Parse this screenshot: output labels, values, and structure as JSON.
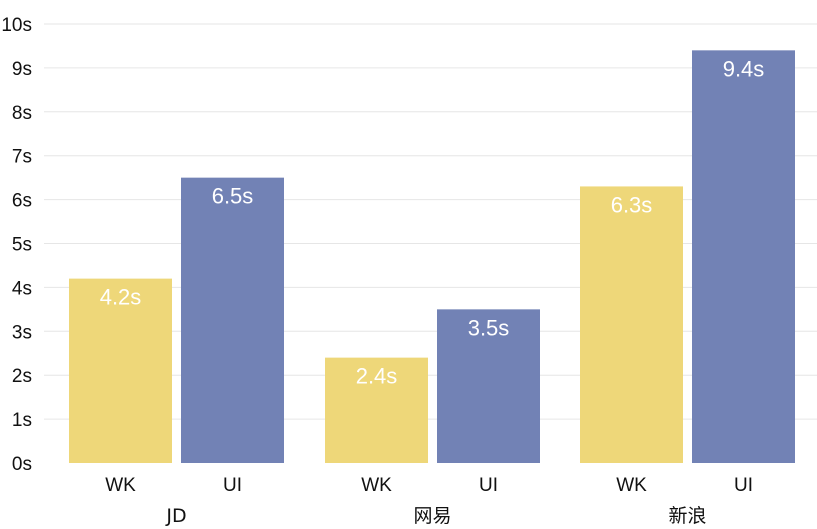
{
  "chart_data": {
    "type": "bar",
    "categories": [
      "JD",
      "网易",
      "新浪"
    ],
    "series": [
      {
        "name": "WK",
        "values": [
          4.2,
          2.4,
          6.3
        ],
        "value_labels": [
          "4.2s",
          "2.4s",
          "6.3s"
        ]
      },
      {
        "name": "UI",
        "values": [
          6.5,
          3.5,
          9.4
        ],
        "value_labels": [
          "6.5s",
          "3.5s",
          "9.4s"
        ]
      }
    ],
    "ylim": [
      0,
      10
    ],
    "y_ticks": [
      0,
      1,
      2,
      3,
      4,
      5,
      6,
      7,
      8,
      9,
      10
    ],
    "y_tick_labels": [
      "0s",
      "1s",
      "2s",
      "3s",
      "4s",
      "5s",
      "6s",
      "7s",
      "8s",
      "9s",
      "10s"
    ],
    "grid": true,
    "legend": "none",
    "colors": {
      "WK": "#EED779",
      "UI": "#7282B5",
      "grid": "#E6E6E6",
      "bar_label": "#FFFFFF",
      "axis_text": "#111111"
    }
  }
}
